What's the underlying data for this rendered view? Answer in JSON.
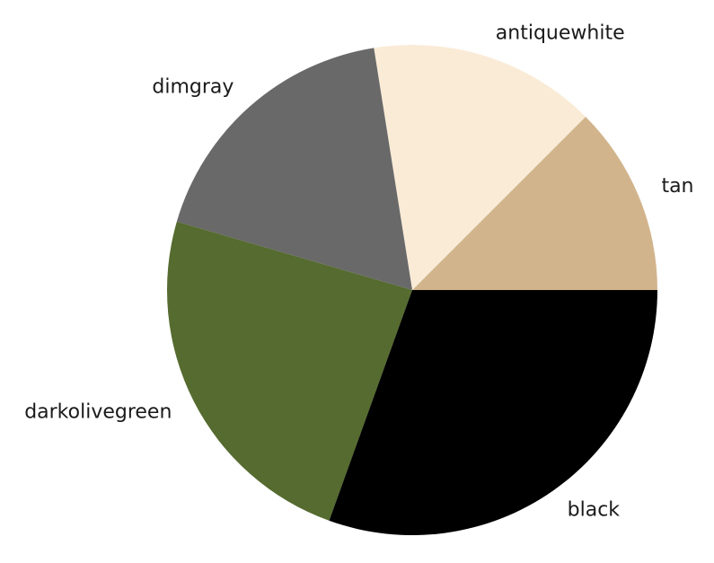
{
  "chart_data": {
    "type": "pie",
    "slices": [
      {
        "label": "tan",
        "value": 12.5,
        "color": "#d2b48c"
      },
      {
        "label": "antiquewhite",
        "value": 15.0,
        "color": "#faebd7"
      },
      {
        "label": "dimgray",
        "value": 18.0,
        "color": "#696969"
      },
      {
        "label": "darkolivegreen",
        "value": 24.0,
        "color": "#556b2f"
      },
      {
        "label": "black",
        "value": 30.5,
        "color": "#000000"
      }
    ],
    "start_angle_deg": 0,
    "direction": "counterclockwise",
    "legend": "none"
  }
}
